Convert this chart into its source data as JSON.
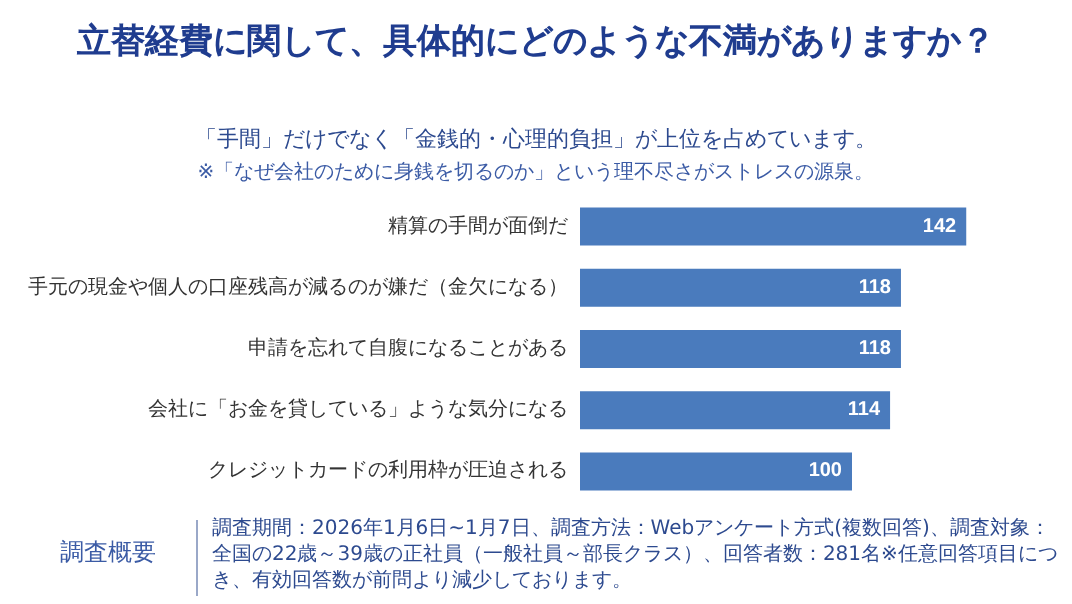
{
  "chart_data": {
    "type": "bar",
    "orientation": "horizontal",
    "title": "立替経費に関して、具体的にどのような不満がありますか？",
    "subtitle": "「手間」だけでなく「金銭的・心理的負担」が上位を占めています。",
    "categories": [
      "精算の手間が面倒だ",
      "手元の現金や個人の口座残高が減るのが嫌だ（金欠になる）",
      "申請を忘れて自腹になることがある",
      "会社に「お金を貸している」ような気分になる",
      "クレジットカードの利用枠が圧迫される"
    ],
    "values": [
      142,
      118,
      118,
      114,
      100
    ],
    "color": "#4a7bbd",
    "data_labels": true,
    "annotations": [
      "※「なぜ会社のために身銭を切るのか」という理不尽さがストレスの源泉。",
      "調査概要",
      "調査期間：2026年1月6日~1月7日、調査方法：Webアンケート方式(複数回答)、調査対象：全国の22歳～39歳の正社員（一般社員～部長クラス）、回答者数：281名※任意回答項目につき、有効回答数が前問より減少しております。"
    ]
  }
}
